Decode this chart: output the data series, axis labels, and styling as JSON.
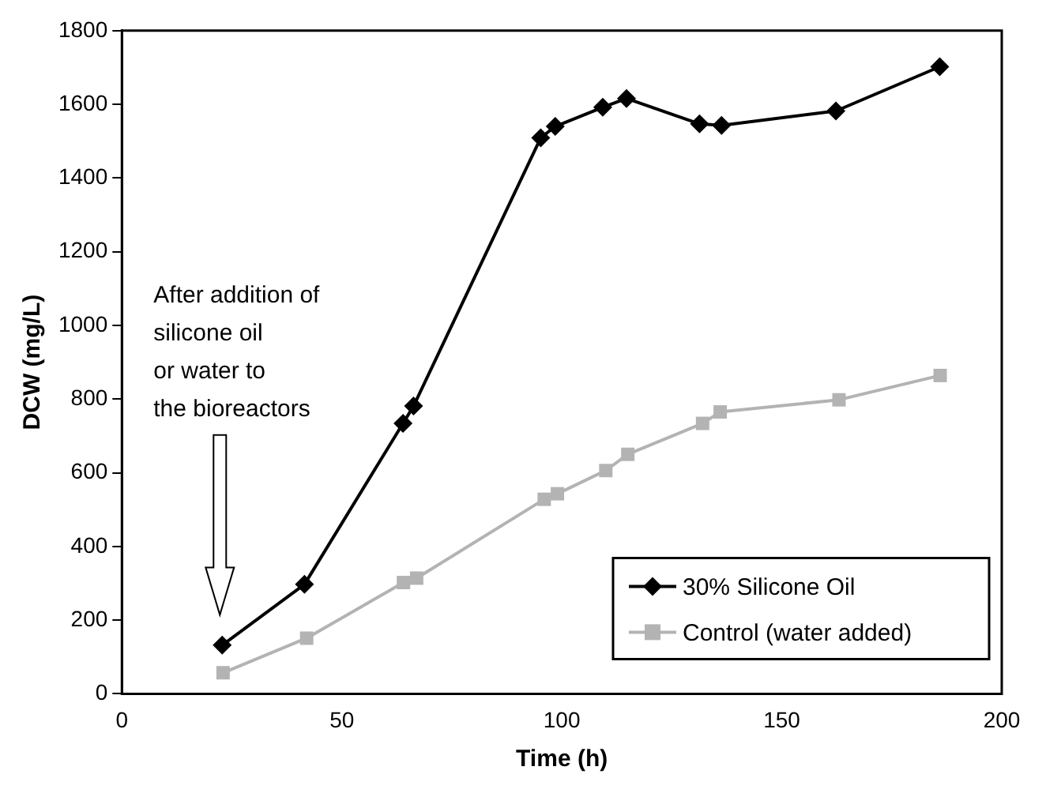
{
  "chart_data": {
    "type": "line",
    "xlabel": "Time (h)",
    "ylabel": "DCW (mg/L)",
    "xlim": [
      0,
      200
    ],
    "xticks": [
      0,
      50,
      100,
      150,
      200
    ],
    "ylim": [
      0,
      1800
    ],
    "yticks": [
      0,
      200,
      400,
      600,
      800,
      1000,
      1200,
      1400,
      1600,
      1800
    ],
    "grid": false,
    "legend": "bottom right",
    "line_style": "solid",
    "series": [
      {
        "name": "30% Silicone Oil",
        "color": "#000000",
        "marker": "diamond",
        "x": [
          22.8,
          41.5,
          63.9,
          66.3,
          95.2,
          98.5,
          109.3,
          114.7,
          131.3,
          136.3,
          162.3,
          185.9
        ],
        "values": [
          132,
          297,
          734,
          781,
          1509,
          1540,
          1592,
          1616,
          1547,
          1543,
          1582,
          1702
        ]
      },
      {
        "name": "Control (water added)",
        "color": "#b3b3b3",
        "marker": "square",
        "x": [
          23,
          42,
          64,
          67,
          96,
          99,
          110,
          115,
          132,
          136,
          163,
          186
        ],
        "values": [
          57,
          151,
          302,
          314,
          528,
          543,
          606,
          650,
          734,
          765,
          798,
          864
        ]
      }
    ],
    "annotations": [
      "After addition of\nsilicone oil\nor water to\nthe bioreactors"
    ]
  }
}
